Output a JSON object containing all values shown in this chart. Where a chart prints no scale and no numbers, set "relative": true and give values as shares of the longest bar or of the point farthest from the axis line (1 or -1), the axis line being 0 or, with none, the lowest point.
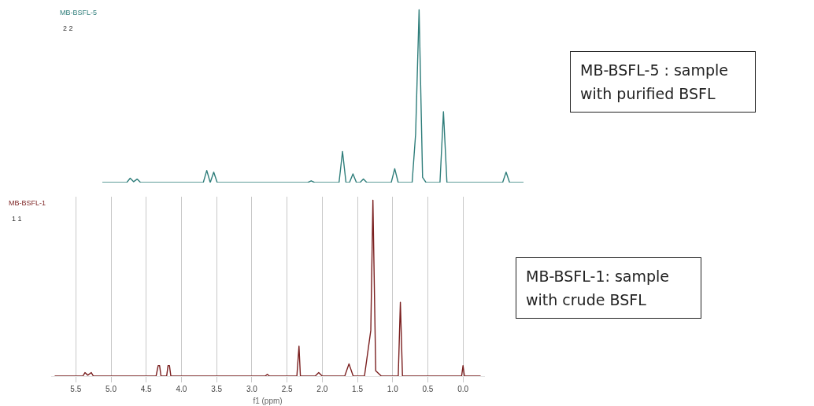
{
  "chart_data": [
    {
      "type": "line",
      "relative": true,
      "tick_labels": false,
      "marker": "none",
      "line_style": "solid",
      "categories": [
        null,
        null,
        null,
        null,
        null,
        null,
        null,
        null,
        null,
        null,
        null,
        null,
        null,
        null,
        null,
        null,
        null,
        null,
        null,
        null,
        null,
        null,
        null,
        null,
        null,
        null,
        null,
        null,
        null,
        null,
        null,
        null,
        null,
        null,
        null,
        null,
        null,
        null,
        null,
        null,
        null,
        null,
        null,
        null,
        null,
        null,
        null,
        null,
        null,
        null,
        null,
        null,
        null,
        null,
        null,
        null,
        null,
        null,
        null,
        null,
        null,
        null,
        null,
        null,
        null,
        null,
        null,
        null,
        null,
        null,
        null,
        null,
        null,
        null,
        null,
        null,
        null,
        null,
        null,
        null,
        null,
        null,
        null,
        null,
        null,
        null,
        null,
        null,
        null,
        null,
        null,
        null,
        null,
        null,
        null,
        null,
        null,
        null,
        null,
        null,
        null,
        null,
        null,
        null,
        null,
        null,
        null,
        null,
        null,
        null,
        null,
        null,
        null,
        null,
        null,
        null,
        null,
        null,
        null,
        null,
        null,
        null
      ],
      "annotations": [
        "2 2",
        "MB-BSFL-5 : sample with purified BSFL"
      ],
      "series": [
        {
          "name": "MB-BSFL-5",
          "color": "#2e7d7a",
          "values": [
            0,
            0,
            0,
            0,
            0,
            0,
            0,
            0,
            0.025,
            0.005,
            0.02,
            0,
            0,
            0,
            0,
            0,
            0,
            0,
            0,
            0,
            0,
            0,
            0,
            0,
            0,
            0,
            0,
            0,
            0,
            0,
            0.07,
            0,
            0.06,
            0,
            0,
            0,
            0,
            0,
            0,
            0,
            0,
            0,
            0,
            0,
            0,
            0,
            0,
            0,
            0,
            0,
            0,
            0,
            0,
            0,
            0,
            0,
            0,
            0,
            0,
            0,
            0.01,
            0,
            0,
            0,
            0,
            0,
            0,
            0,
            0,
            0.18,
            0,
            0,
            0.05,
            0,
            0,
            0.02,
            0,
            0,
            0,
            0,
            0,
            0,
            0,
            0,
            0.08,
            0,
            0,
            0,
            0,
            0,
            0.28,
            1,
            0.03,
            0,
            0,
            0,
            0,
            0,
            0.41,
            0,
            0,
            0,
            0,
            0,
            0,
            0,
            0,
            0,
            0,
            0,
            0,
            0,
            0,
            0,
            0,
            0,
            0.06,
            0,
            0,
            0,
            0,
            0
          ]
        }
      ]
    },
    {
      "type": "line",
      "relative": true,
      "grid": "x",
      "tick_labels": "x",
      "marker": "none",
      "line_style": "solid",
      "xlabel": "f1 (ppm)",
      "xlim": [
        5.85,
        -0.3
      ],
      "xticks": [
        {
          "value": 5.5,
          "label": "5.5"
        },
        {
          "value": 5,
          "label": "5.0"
        },
        {
          "value": 4.5,
          "label": "4.5"
        },
        {
          "value": 4,
          "label": "4.0"
        },
        {
          "value": 3.5,
          "label": "3.5"
        },
        {
          "value": 3,
          "label": "3.0"
        },
        {
          "value": 2.5,
          "label": "2.5"
        },
        {
          "value": 2,
          "label": "2.0"
        },
        {
          "value": 1.5,
          "label": "1.5"
        },
        {
          "value": 1,
          "label": "1.0"
        },
        {
          "value": 0.5,
          "label": "0.5"
        },
        {
          "value": 0,
          "label": "0.0"
        }
      ],
      "annotations": [
        "1 1",
        "MB-BSFL-1: sample with crude BSFL"
      ],
      "series": [
        {
          "name": "MB-BSFL-1",
          "color": "#7a1f1f",
          "x": [
            5.8,
            5.4,
            5.37,
            5.33,
            5.28,
            5.25,
            4.36,
            4.33,
            4.31,
            4.29,
            4.21,
            4.19,
            4.17,
            4.15,
            2.81,
            2.78,
            2.75,
            2.36,
            2.33,
            2.31,
            2.1,
            2.05,
            2.0,
            1.68,
            1.62,
            1.56,
            1.4,
            1.31,
            1.28,
            1.24,
            1.16,
            0.92,
            0.89,
            0.86,
            0.02,
            0,
            -0.02,
            -0.25
          ],
          "values": [
            0,
            0,
            0.02,
            0.005,
            0.02,
            0,
            0,
            0.06,
            0.06,
            0,
            0,
            0.06,
            0.06,
            0,
            0,
            0.01,
            0,
            0,
            0.17,
            0,
            0,
            0.02,
            0,
            0,
            0.07,
            0,
            0,
            0.26,
            1,
            0.03,
            0,
            0,
            0.42,
            0,
            0,
            0.06,
            0,
            0
          ]
        }
      ]
    }
  ]
}
